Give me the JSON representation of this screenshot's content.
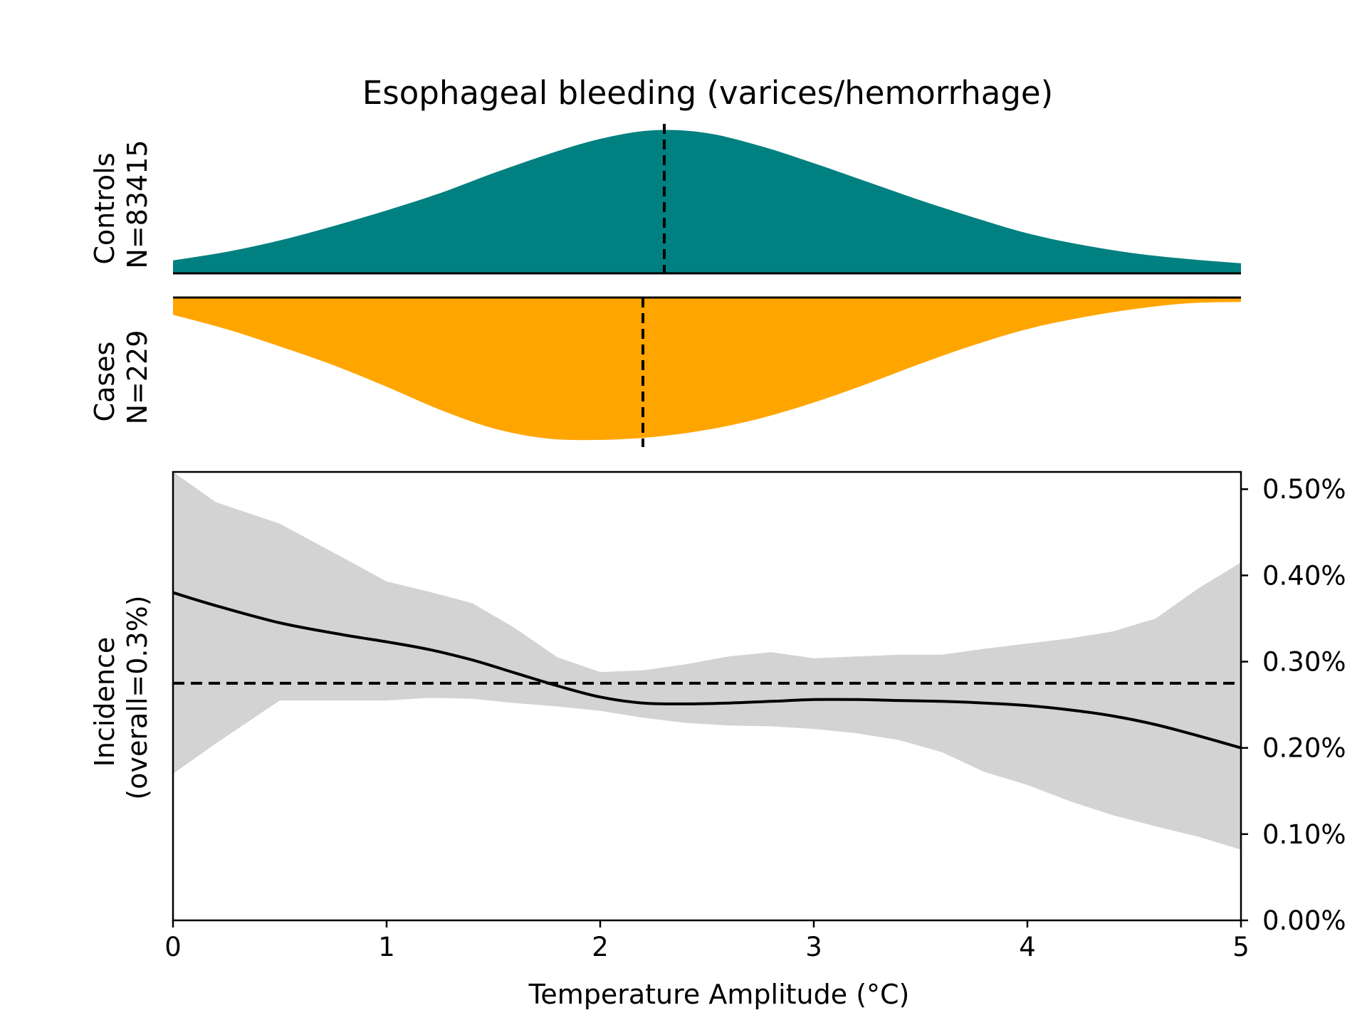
{
  "chart_data": {
    "type": "area",
    "title": "Esophageal bleeding (varices/hemorrhage)",
    "colors": {
      "controls": "#008080",
      "cases": "#FFA500",
      "ci_band": "#D3D3D3",
      "line": "#000000"
    },
    "distributions": {
      "controls": {
        "label_line1": "Controls",
        "label_line2": "N=83415",
        "median": 2.3,
        "x": [
          0,
          0.25,
          0.5,
          0.75,
          1.0,
          1.25,
          1.5,
          1.75,
          2.0,
          2.25,
          2.5,
          2.75,
          3.0,
          3.25,
          3.5,
          3.75,
          4.0,
          4.25,
          4.5,
          4.75,
          5.0
        ],
        "density": [
          0.09,
          0.15,
          0.23,
          0.33,
          0.44,
          0.56,
          0.7,
          0.83,
          0.94,
          1.0,
          0.98,
          0.89,
          0.77,
          0.64,
          0.51,
          0.39,
          0.28,
          0.2,
          0.14,
          0.1,
          0.07
        ]
      },
      "cases": {
        "label_line1": "Cases",
        "label_line2": "N=229",
        "median": 2.2,
        "x": [
          0,
          0.25,
          0.5,
          0.75,
          1.0,
          1.25,
          1.5,
          1.75,
          2.0,
          2.25,
          2.5,
          2.75,
          3.0,
          3.25,
          3.5,
          3.75,
          4.0,
          4.25,
          4.5,
          4.75,
          5.0
        ],
        "density": [
          0.12,
          0.22,
          0.34,
          0.47,
          0.62,
          0.78,
          0.91,
          0.98,
          0.99,
          0.97,
          0.92,
          0.84,
          0.73,
          0.6,
          0.46,
          0.33,
          0.22,
          0.14,
          0.08,
          0.04,
          0.03
        ]
      }
    },
    "incidence": {
      "xlabel": "Temperature Amplitude (°C)",
      "ylabel_line1": "Incidence",
      "ylabel_line2": "(overall=0.3%)",
      "xlim": [
        0,
        5
      ],
      "ylim": [
        0,
        0.0052
      ],
      "x_ticks": [
        0,
        1,
        2,
        3,
        4,
        5
      ],
      "y_ticks": [
        0,
        0.001,
        0.002,
        0.003,
        0.004,
        0.005
      ],
      "y_tick_labels": [
        "0.00%",
        "0.10%",
        "0.20%",
        "0.30%",
        "0.40%",
        "0.50%"
      ],
      "overall": 0.00275,
      "x": [
        0,
        0.2,
        0.5,
        0.8,
        1.0,
        1.2,
        1.4,
        1.6,
        1.8,
        2.0,
        2.2,
        2.4,
        2.6,
        2.8,
        3.0,
        3.2,
        3.4,
        3.6,
        3.8,
        4.0,
        4.2,
        4.4,
        4.6,
        4.8,
        5.0
      ],
      "estimate": [
        0.0038,
        0.00365,
        0.00345,
        0.00331,
        0.00323,
        0.00314,
        0.00302,
        0.00287,
        0.00272,
        0.00259,
        0.00252,
        0.00251,
        0.00252,
        0.00254,
        0.00256,
        0.00256,
        0.00255,
        0.00254,
        0.00252,
        0.00249,
        0.00244,
        0.00237,
        0.00227,
        0.00214,
        0.002
      ],
      "upper": [
        0.0053,
        0.00485,
        0.0046,
        0.0042,
        0.00393,
        0.00381,
        0.00368,
        0.00339,
        0.00305,
        0.00288,
        0.0029,
        0.00297,
        0.00306,
        0.00311,
        0.00304,
        0.00306,
        0.00308,
        0.00308,
        0.00315,
        0.00321,
        0.00327,
        0.00335,
        0.0035,
        0.00385,
        0.00415
      ],
      "lower": [
        0.0017,
        0.00205,
        0.00255,
        0.00255,
        0.00255,
        0.00258,
        0.00257,
        0.00252,
        0.00248,
        0.00243,
        0.00235,
        0.00229,
        0.00226,
        0.00225,
        0.00222,
        0.00217,
        0.00209,
        0.00195,
        0.00172,
        0.00157,
        0.00138,
        0.00122,
        0.00109,
        0.00097,
        0.00082
      ]
    }
  }
}
